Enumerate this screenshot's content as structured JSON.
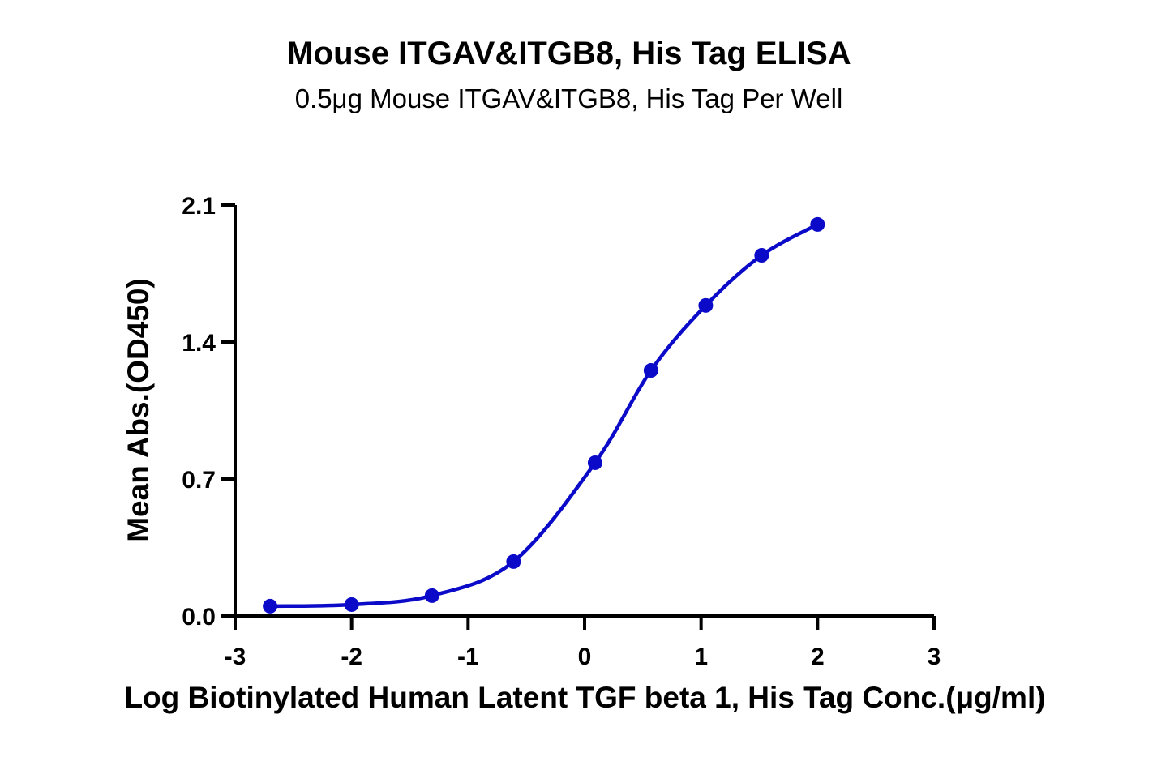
{
  "chart_data": {
    "type": "line",
    "title": "Mouse ITGAV&ITGB8, His Tag ELISA",
    "subtitle": "0.5μg Mouse ITGAV&ITGB8, His Tag Per Well",
    "xlabel": "Log Biotinylated Human Latent TGF beta 1, His Tag Conc.(μg/ml)",
    "ylabel": "Mean Abs.(OD450)",
    "xlim": [
      -3,
      3
    ],
    "ylim": [
      0,
      2.1
    ],
    "x_ticks": [
      "-3",
      "-2",
      "-1",
      "0",
      "1",
      "2",
      "3"
    ],
    "y_ticks": [
      "0.0",
      "0.7",
      "1.4",
      "2.1"
    ],
    "grid": false,
    "legend": null,
    "series": [
      {
        "name": "Mouse ITGAV&ITGB8, His Tag",
        "color": "#0a0ac8",
        "marker": "circle",
        "fit": "sigmoidal 4PL curve",
        "x": [
          -2.7,
          -2.0,
          -1.31,
          -0.61,
          0.09,
          0.57,
          1.04,
          1.52,
          2.0
        ],
        "y": [
          0.05,
          0.058,
          0.104,
          0.278,
          0.783,
          1.255,
          1.587,
          1.843,
          2.001
        ]
      }
    ]
  }
}
